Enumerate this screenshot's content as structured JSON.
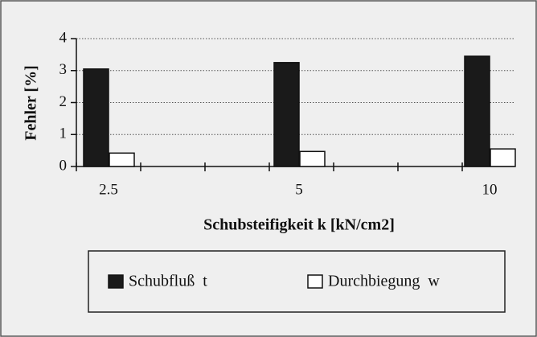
{
  "chart_data": {
    "type": "bar",
    "y_label": "Fehler [%]",
    "x_label": "Schubsteifigkeit k [kN/cm2]",
    "categories": [
      "2.5",
      "5",
      "10"
    ],
    "series": [
      {
        "name": "Schubfluß  t",
        "color": "#1a1a1a",
        "values": [
          3.05,
          3.25,
          3.45
        ]
      },
      {
        "name": "Durchbiegung  w",
        "color": "#ffffff",
        "values": [
          0.42,
          0.47,
          0.55
        ]
      }
    ],
    "ylim": [
      0,
      4
    ],
    "yticks": [
      0,
      1,
      2,
      3,
      4
    ],
    "grid": true
  }
}
